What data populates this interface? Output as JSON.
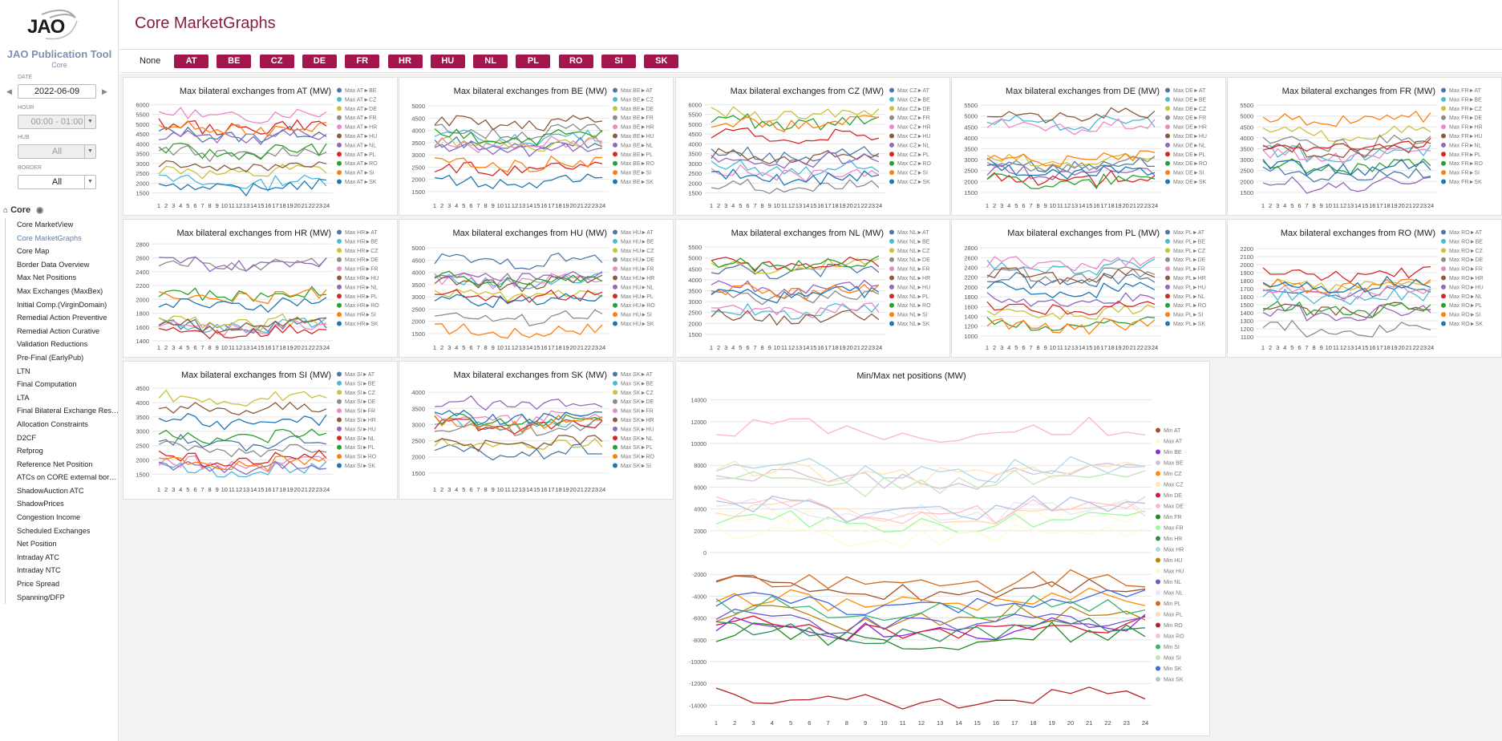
{
  "app": {
    "logo": "JAO",
    "title": "JAO Publication Tool",
    "subtitle": "Core"
  },
  "sidebar": {
    "date_label": "DATE",
    "date_value": "2022-06-09",
    "hour_label": "HOUR",
    "hour_value": "00:00 - 01:00",
    "hub_label": "HUB",
    "hub_value": "All",
    "border_label": "BORDER",
    "border_value": "All",
    "section_label": "Core",
    "items": [
      {
        "label": "Core MarketView"
      },
      {
        "label": "Core MarketGraphs"
      },
      {
        "label": "Core Map"
      },
      {
        "label": "Border Data Overview"
      },
      {
        "label": "Max Net Positions"
      },
      {
        "label": "Max Exchanges (MaxBex)"
      },
      {
        "label": "Initial Comp.(VirginDomain)"
      },
      {
        "label": "Remedial Action Preventive"
      },
      {
        "label": "Remedial Action Curative"
      },
      {
        "label": "Validation Reductions"
      },
      {
        "label": "Pre-Final (EarlyPub)"
      },
      {
        "label": "LTN"
      },
      {
        "label": "Final Computation"
      },
      {
        "label": "LTA"
      },
      {
        "label": "Final Bilateral Exchange Restri..."
      },
      {
        "label": "Allocation Constraints"
      },
      {
        "label": "D2CF"
      },
      {
        "label": "Refprog"
      },
      {
        "label": "Reference Net Position"
      },
      {
        "label": "ATCs on CORE external borders"
      },
      {
        "label": "ShadowAuction ATC"
      },
      {
        "label": "ShadowPrices"
      },
      {
        "label": "Congestion Income"
      },
      {
        "label": "Scheduled Exchanges"
      },
      {
        "label": "Net Position"
      },
      {
        "label": "Intraday ATC"
      },
      {
        "label": "Intraday NTC"
      },
      {
        "label": "Price Spread"
      },
      {
        "label": "Spanning/DFP"
      }
    ],
    "active_index": 1
  },
  "header": {
    "title": "Core MarketGraphs"
  },
  "filters": {
    "none_label": "None",
    "buttons": [
      "AT",
      "BE",
      "CZ",
      "DE",
      "FR",
      "HR",
      "HU",
      "NL",
      "PL",
      "RO",
      "SI",
      "SK"
    ]
  },
  "colors": {
    "accent": "#a3154d",
    "series": [
      "#4e79a7",
      "#4cb9d8",
      "#c9c23a",
      "#8c8c8c",
      "#e88ac7",
      "#8c5a3c",
      "#9467bd",
      "#d62728",
      "#2ca02c",
      "#ff7f0e",
      "#1f77b4",
      "#3c6b9c"
    ]
  },
  "chart_data": [
    {
      "type": "line",
      "title": "Max bilateral exchanges from AT (MW)",
      "zone": "AT",
      "x": [
        1,
        2,
        3,
        4,
        5,
        6,
        7,
        8,
        9,
        10,
        11,
        12,
        13,
        14,
        15,
        16,
        17,
        18,
        19,
        20,
        21,
        22,
        23,
        24
      ],
      "yticks": [
        1500,
        2000,
        2500,
        3000,
        3500,
        4000,
        4500,
        5000,
        5500,
        6000
      ],
      "ylim": [
        1200,
        6300
      ],
      "legend": [
        "Max AT►BE",
        "Max AT►CZ",
        "Max AT►DE",
        "Max AT►FR",
        "Max AT►HR",
        "Max AT►HU",
        "Max AT►NL",
        "Max AT►PL",
        "Max AT►RO",
        "Max AT►SI",
        "Max AT►SK"
      ]
    },
    {
      "type": "line",
      "title": "Max bilateral exchanges from BE (MW)",
      "zone": "BE",
      "x": [
        1,
        2,
        3,
        4,
        5,
        6,
        7,
        8,
        9,
        10,
        11,
        12,
        13,
        14,
        15,
        16,
        17,
        18,
        19,
        20,
        21,
        22,
        23,
        24
      ],
      "yticks": [
        1500,
        2000,
        2500,
        3000,
        3500,
        4000,
        4500,
        5000
      ],
      "ylim": [
        1200,
        5300
      ],
      "legend": [
        "Max BE►AT",
        "Max BE►CZ",
        "Max BE►DE",
        "Max BE►FR",
        "Max BE►HR",
        "Max BE►HU",
        "Max BE►NL",
        "Max BE►PL",
        "Max BE►RO",
        "Max BE►SI",
        "Max BE►SK"
      ]
    },
    {
      "type": "line",
      "title": "Max bilateral exchanges from CZ (MW)",
      "zone": "CZ",
      "x": [
        1,
        2,
        3,
        4,
        5,
        6,
        7,
        8,
        9,
        10,
        11,
        12,
        13,
        14,
        15,
        16,
        17,
        18,
        19,
        20,
        21,
        22,
        23,
        24
      ],
      "yticks": [
        1500,
        2000,
        2500,
        3000,
        3500,
        4000,
        4500,
        5000,
        5500,
        6000
      ],
      "ylim": [
        1200,
        6300
      ],
      "legend": [
        "Max CZ►AT",
        "Max CZ►BE",
        "Max CZ►DE",
        "Max CZ►FR",
        "Max CZ►HR",
        "Max CZ►HU",
        "Max CZ►NL",
        "Max CZ►PL",
        "Max CZ►RO",
        "Max CZ►SI",
        "Max CZ►SK"
      ]
    },
    {
      "type": "line",
      "title": "Max bilateral exchanges from DE (MW)",
      "zone": "DE",
      "x": [
        1,
        2,
        3,
        4,
        5,
        6,
        7,
        8,
        9,
        10,
        11,
        12,
        13,
        14,
        15,
        16,
        17,
        18,
        19,
        20,
        21,
        22,
        23,
        24
      ],
      "yticks": [
        1500,
        2000,
        2500,
        3000,
        3500,
        4000,
        4500,
        5000,
        5500
      ],
      "ylim": [
        1200,
        5800
      ],
      "legend": [
        "Max DE►AT",
        "Max DE►BE",
        "Max DE►CZ",
        "Max DE►FR",
        "Max DE►HR",
        "Max DE►HU",
        "Max DE►NL",
        "Max DE►PL",
        "Max DE►RO",
        "Max DE►SI",
        "Max DE►SK"
      ]
    },
    {
      "type": "line",
      "title": "Max bilateral exchanges from FR (MW)",
      "zone": "FR",
      "x": [
        1,
        2,
        3,
        4,
        5,
        6,
        7,
        8,
        9,
        10,
        11,
        12,
        13,
        14,
        15,
        16,
        17,
        18,
        19,
        20,
        21,
        22,
        23,
        24
      ],
      "yticks": [
        1500,
        2000,
        2500,
        3000,
        3500,
        4000,
        4500,
        5000,
        5500
      ],
      "ylim": [
        1200,
        5800
      ],
      "legend": [
        "Max FR►AT",
        "Max FR►BE",
        "Max FR►CZ",
        "Max FR►DE",
        "Max FR►HR",
        "Max FR►HU",
        "Max FR►NL",
        "Max FR►PL",
        "Max FR►RO",
        "Max FR►SI",
        "Max FR►SK"
      ]
    },
    {
      "type": "line",
      "title": "Max bilateral exchanges from HR (MW)",
      "zone": "HR",
      "x": [
        1,
        2,
        3,
        4,
        5,
        6,
        7,
        8,
        9,
        10,
        11,
        12,
        13,
        14,
        15,
        16,
        17,
        18,
        19,
        20,
        21,
        22,
        23,
        24
      ],
      "yticks": [
        1400,
        1600,
        1800,
        2000,
        2200,
        2400,
        2600,
        2800
      ],
      "ylim": [
        1400,
        2850
      ],
      "legend": [
        "Max HR►AT",
        "Max HR►BE",
        "Max HR►CZ",
        "Max HR►DE",
        "Max HR►FR",
        "Max HR►HU",
        "Max HR►NL",
        "Max HR►PL",
        "Max HR►RO",
        "Max HR►SI",
        "Max HR►SK"
      ]
    },
    {
      "type": "line",
      "title": "Max bilateral exchanges from HU (MW)",
      "zone": "HU",
      "x": [
        1,
        2,
        3,
        4,
        5,
        6,
        7,
        8,
        9,
        10,
        11,
        12,
        13,
        14,
        15,
        16,
        17,
        18,
        19,
        20,
        21,
        22,
        23,
        24
      ],
      "yticks": [
        1500,
        2000,
        2500,
        3000,
        3500,
        4000,
        4500,
        5000
      ],
      "ylim": [
        1200,
        5300
      ],
      "legend": [
        "Max HU►AT",
        "Max HU►BE",
        "Max HU►CZ",
        "Max HU►DE",
        "Max HU►FR",
        "Max HU►HR",
        "Max HU►NL",
        "Max HU►PL",
        "Max HU►RO",
        "Max HU►SI",
        "Max HU►SK"
      ]
    },
    {
      "type": "line",
      "title": "Max bilateral exchanges from NL (MW)",
      "zone": "NL",
      "x": [
        1,
        2,
        3,
        4,
        5,
        6,
        7,
        8,
        9,
        10,
        11,
        12,
        13,
        14,
        15,
        16,
        17,
        18,
        19,
        20,
        21,
        22,
        23,
        24
      ],
      "yticks": [
        1500,
        2000,
        2500,
        3000,
        3500,
        4000,
        4500,
        5000,
        5500
      ],
      "ylim": [
        1200,
        5800
      ],
      "legend": [
        "Max NL►AT",
        "Max NL►BE",
        "Max NL►CZ",
        "Max NL►DE",
        "Max NL►FR",
        "Max NL►HR",
        "Max NL►HU",
        "Max NL►PL",
        "Max NL►RO",
        "Max NL►SI",
        "Max NL►SK"
      ]
    },
    {
      "type": "line",
      "title": "Max bilateral exchanges from PL (MW)",
      "zone": "PL",
      "x": [
        1,
        2,
        3,
        4,
        5,
        6,
        7,
        8,
        9,
        10,
        11,
        12,
        13,
        14,
        15,
        16,
        17,
        18,
        19,
        20,
        21,
        22,
        23,
        24
      ],
      "yticks": [
        1000,
        1200,
        1400,
        1600,
        1800,
        2000,
        2200,
        2400,
        2600,
        2800
      ],
      "ylim": [
        900,
        2950
      ],
      "legend": [
        "Max PL►AT",
        "Max PL►BE",
        "Max PL►CZ",
        "Max PL►DE",
        "Max PL►FR",
        "Max PL►HR",
        "Max PL►HU",
        "Max PL►NL",
        "Max PL►RO",
        "Max PL►SI",
        "Max PL►SK"
      ]
    },
    {
      "type": "line",
      "title": "Max bilateral exchanges from RO (MW)",
      "zone": "RO",
      "x": [
        1,
        2,
        3,
        4,
        5,
        6,
        7,
        8,
        9,
        10,
        11,
        12,
        13,
        14,
        15,
        16,
        17,
        18,
        19,
        20,
        21,
        22,
        23,
        24
      ],
      "yticks": [
        1100,
        1200,
        1300,
        1400,
        1500,
        1600,
        1700,
        1800,
        1900,
        2000,
        2100,
        2200
      ],
      "ylim": [
        1050,
        2300
      ],
      "legend": [
        "Max RO►AT",
        "Max RO►BE",
        "Max RO►CZ",
        "Max RO►DE",
        "Max RO►FR",
        "Max RO►HR",
        "Max RO►HU",
        "Max RO►NL",
        "Max RO►PL",
        "Max RO►SI",
        "Max RO►SK"
      ]
    },
    {
      "type": "line",
      "title": "Max bilateral exchanges from SI (MW)",
      "zone": "SI",
      "x": [
        1,
        2,
        3,
        4,
        5,
        6,
        7,
        8,
        9,
        10,
        11,
        12,
        13,
        14,
        15,
        16,
        17,
        18,
        19,
        20,
        21,
        22,
        23,
        24
      ],
      "yticks": [
        1500,
        2000,
        2500,
        3000,
        3500,
        4000,
        4500
      ],
      "ylim": [
        1200,
        4700
      ],
      "legend": [
        "Max SI►AT",
        "Max SI►BE",
        "Max SI►CZ",
        "Max SI►DE",
        "Max SI►FR",
        "Max SI►HR",
        "Max SI►HU",
        "Max SI►NL",
        "Max SI►PL",
        "Max SI►RO",
        "Max SI►SK"
      ]
    },
    {
      "type": "line",
      "title": "Max bilateral exchanges from SK (MW)",
      "zone": "SK",
      "x": [
        1,
        2,
        3,
        4,
        5,
        6,
        7,
        8,
        9,
        10,
        11,
        12,
        13,
        14,
        15,
        16,
        17,
        18,
        19,
        20,
        21,
        22,
        23,
        24
      ],
      "yticks": [
        1500,
        2000,
        2500,
        3000,
        3500,
        4000
      ],
      "ylim": [
        1200,
        4300
      ],
      "legend": [
        "Max SK►AT",
        "Max SK►BE",
        "Max SK►CZ",
        "Max SK►DE",
        "Max SK►FR",
        "Max SK►HR",
        "Max SK►HU",
        "Max SK►NL",
        "Max SK►PL",
        "Max SK►RO",
        "Max SK►SI"
      ]
    },
    {
      "type": "line",
      "title": "Min/Max net positions (MW)",
      "zone": "NP",
      "x": [
        1,
        2,
        3,
        4,
        5,
        6,
        7,
        8,
        9,
        10,
        11,
        12,
        13,
        14,
        15,
        16,
        17,
        18,
        19,
        20,
        21,
        22,
        23,
        24
      ],
      "yticks": [
        -14000,
        -12000,
        -10000,
        -8000,
        -6000,
        -4000,
        -2000,
        0,
        2000,
        4000,
        6000,
        8000,
        10000,
        12000,
        14000
      ],
      "ylim": [
        -15000,
        15000
      ],
      "legend": [
        "Min AT",
        "Max AT",
        "Min BE",
        "Max BE",
        "Min CZ",
        "Max CZ",
        "Min DE",
        "Max DE",
        "Min FR",
        "Max FR",
        "Min HR",
        "Max HR",
        "Min HU",
        "Max HU",
        "Min NL",
        "Max NL",
        "Min PL",
        "Max PL",
        "Min RO",
        "Max RO",
        "Min SI",
        "Max SI",
        "Min SK",
        "Max SK"
      ]
    }
  ]
}
